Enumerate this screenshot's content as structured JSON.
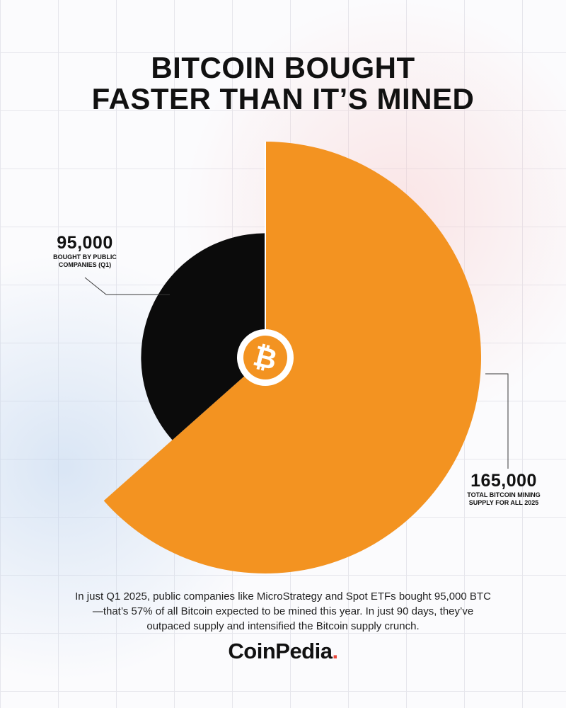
{
  "title": {
    "line1": "BITCOIN BOUGHT",
    "line2": "FASTER THAN IT’S MINED"
  },
  "chart_data": {
    "type": "pie",
    "subtype": "radial-variable-radius",
    "title": "BITCOIN BOUGHT FASTER THAN IT’S MINED",
    "center_icon": "bitcoin-icon",
    "slices": [
      {
        "name": "bitcoin-mining-supply",
        "value": 165000,
        "value_label": "165,000",
        "label": "TOTAL BITCOIN MINING SUPPLY FOR  ALL 2025",
        "color": "#f39321"
      },
      {
        "name": "public-company-purchases",
        "value": 95000,
        "value_label": "95,000",
        "label": "BOUGHT BY PUBLIC COMPANIES (Q1)",
        "color": "#0b0b0b"
      }
    ]
  },
  "description": "In just Q1 2025, public companies like MicroStrategy and Spot ETFs bought 95,000 BTC—that’s 57% of all Bitcoin expected to be mined this year. In just 90 days, they’ve outpaced supply and intensified the Bitcoin supply crunch.",
  "brand": {
    "name": "CoinPedia",
    "dot": "."
  },
  "colors": {
    "orange": "#f39321",
    "black": "#0b0b0b",
    "accent": "#e8463a"
  }
}
